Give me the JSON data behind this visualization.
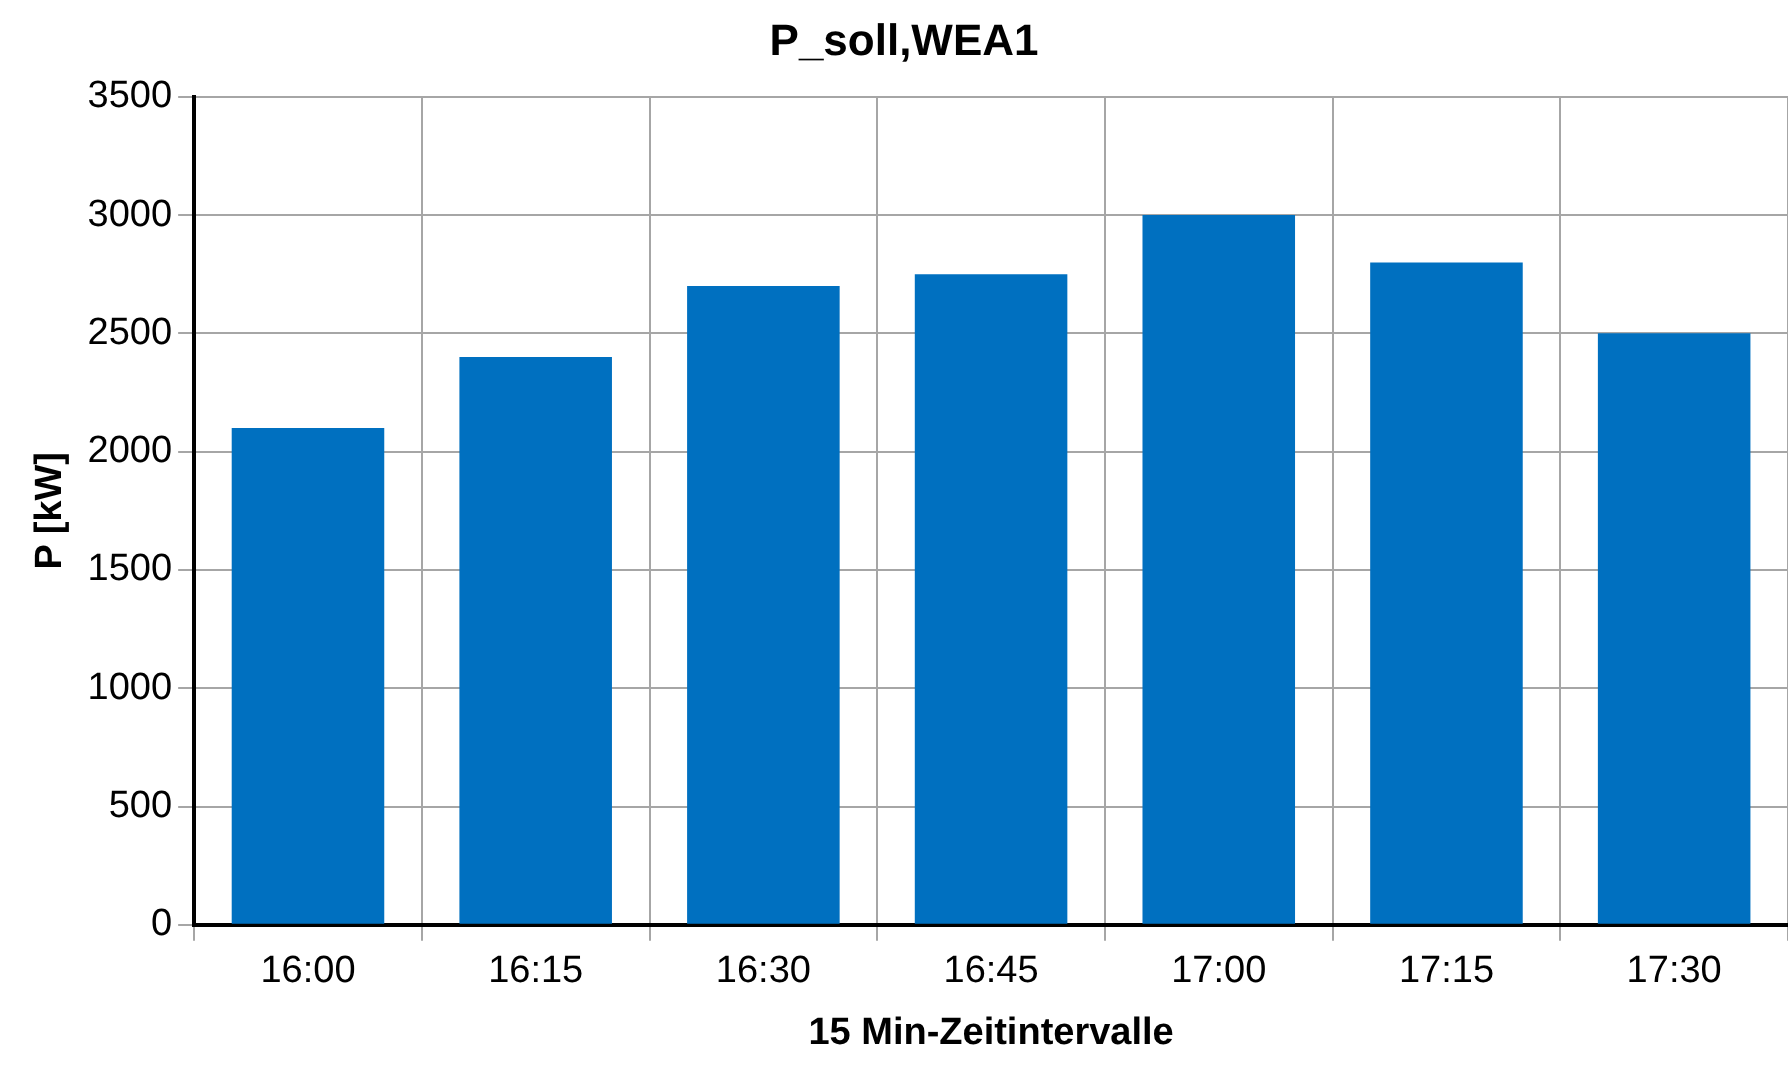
{
  "chart_data": {
    "type": "bar",
    "title": "P_soll,WEA1",
    "xlabel": "15 Min-Zeitintervalle",
    "ylabel": "P [kW]",
    "categories": [
      "16:00",
      "16:15",
      "16:30",
      "16:45",
      "17:00",
      "17:15",
      "17:30"
    ],
    "values": [
      2100,
      2400,
      2700,
      2750,
      3000,
      2800,
      2500
    ],
    "color": "#0070c0",
    "ylim": [
      0,
      3500
    ],
    "yticks": [
      0,
      500,
      1000,
      1500,
      2000,
      2500,
      3000,
      3500
    ],
    "grid": true
  }
}
